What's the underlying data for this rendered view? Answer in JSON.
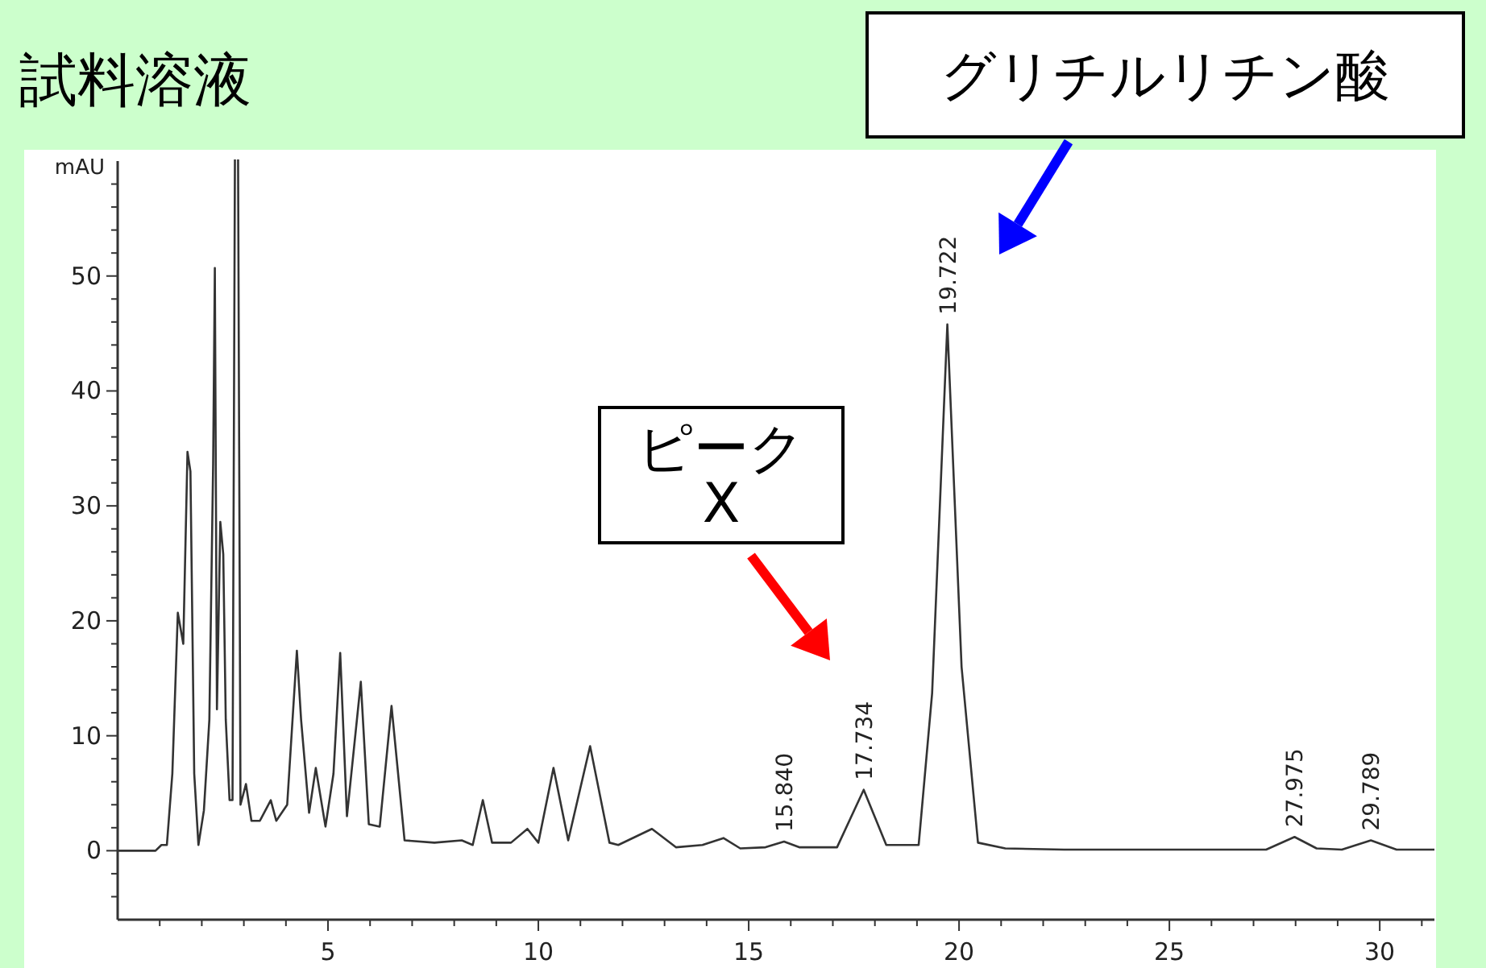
{
  "chart_data": {
    "type": "line",
    "title": "試料溶液",
    "ylabel": "mAU",
    "xlim": [
      0,
      31.3
    ],
    "ylim": [
      -6,
      60
    ],
    "xticks": [
      {
        "value": 1,
        "label": null
      },
      {
        "value": 2,
        "label": null
      },
      {
        "value": 3,
        "label": null
      },
      {
        "value": 4,
        "label": null
      },
      5,
      {
        "value": 6,
        "label": null
      },
      {
        "value": 7,
        "label": null
      },
      {
        "value": 8,
        "label": null
      },
      {
        "value": 9,
        "label": null
      },
      10,
      {
        "value": 11,
        "label": null
      },
      {
        "value": 12,
        "label": null
      },
      {
        "value": 13,
        "label": null
      },
      {
        "value": 14,
        "label": null
      },
      15,
      {
        "value": 16,
        "label": null
      },
      {
        "value": 17,
        "label": null
      },
      {
        "value": 18,
        "label": null
      },
      {
        "value": 19,
        "label": null
      },
      20,
      {
        "value": 21,
        "label": null
      },
      {
        "value": 22,
        "label": null
      },
      {
        "value": 23,
        "label": null
      },
      {
        "value": 24,
        "label": null
      },
      25,
      {
        "value": 26,
        "label": null
      },
      {
        "value": 27,
        "label": null
      },
      {
        "value": 28,
        "label": null
      },
      {
        "value": 29,
        "label": null
      },
      30,
      {
        "value": 31,
        "label": null
      }
    ],
    "yticks": [
      {
        "value": -4,
        "label": null
      },
      {
        "value": -2,
        "label": null
      },
      0,
      {
        "value": 2,
        "label": null
      },
      {
        "value": 4,
        "label": null
      },
      {
        "value": 6,
        "label": null
      },
      {
        "value": 8,
        "label": null
      },
      10,
      {
        "value": 12,
        "label": null
      },
      {
        "value": 14,
        "label": null
      },
      {
        "value": 16,
        "label": null
      },
      {
        "value": 18,
        "label": null
      },
      20,
      {
        "value": 22,
        "label": null
      },
      {
        "value": 24,
        "label": null
      },
      {
        "value": 26,
        "label": null
      },
      {
        "value": 28,
        "label": null
      },
      30,
      {
        "value": 32,
        "label": null
      },
      {
        "value": 34,
        "label": null
      },
      {
        "value": 36,
        "label": null
      },
      {
        "value": 38,
        "label": null
      },
      40,
      {
        "value": 42,
        "label": null
      },
      {
        "value": 44,
        "label": null
      },
      {
        "value": 46,
        "label": null
      },
      {
        "value": 48,
        "label": null
      },
      50,
      {
        "value": 52,
        "label": null
      },
      {
        "value": 54,
        "label": null
      },
      {
        "value": 56,
        "label": null
      },
      {
        "value": 58,
        "label": null
      }
    ],
    "grid": false,
    "marker": "none",
    "line_style": "solid",
    "series": [
      {
        "color": "#333333",
        "x": [
          0,
          0.9,
          1.04,
          1.17,
          1.3,
          1.43,
          1.56,
          1.66,
          1.73,
          1.82,
          1.92,
          2.05,
          2.18,
          2.27,
          2.31,
          2.36,
          2.44,
          2.51,
          2.57,
          2.66,
          2.73,
          2.79,
          2.86,
          2.92,
          3.05,
          3.18,
          3.38,
          3.64,
          3.77,
          4.03,
          4.26,
          4.36,
          4.55,
          4.71,
          4.94,
          5.13,
          5.29,
          5.45,
          5.78,
          5.97,
          6.23,
          6.51,
          6.82,
          7.53,
          8.18,
          8.44,
          8.68,
          8.9,
          9.35,
          9.74,
          10.0,
          10.36,
          10.71,
          11.23,
          11.69,
          11.9,
          12.7,
          13.27,
          13.9,
          14.4,
          14.8,
          15.4,
          15.84,
          16.2,
          17.1,
          17.734,
          18.27,
          19.04,
          19.36,
          19.722,
          20.06,
          20.45,
          21.1,
          22.5,
          27.3,
          27.975,
          28.5,
          29.1,
          29.789,
          30.4,
          31.3
        ],
        "values": [
          0,
          0,
          0.5,
          0.5,
          6.7,
          20.7,
          18,
          34.7,
          33,
          6.7,
          0.5,
          3.5,
          11.4,
          33.7,
          50.7,
          12.3,
          28.6,
          25.8,
          11.4,
          4.4,
          4.4,
          null,
          null,
          4,
          5.8,
          2.6,
          2.6,
          4.4,
          2.6,
          4,
          17.4,
          11.4,
          3.3,
          7.2,
          2.1,
          6.7,
          17.2,
          3,
          14.7,
          2.3,
          2.1,
          12.6,
          0.9,
          0.7,
          0.9,
          0.5,
          4.4,
          0.7,
          0.7,
          1.9,
          0.7,
          7.2,
          0.9,
          9.1,
          0.7,
          0.5,
          1.9,
          0.3,
          0.5,
          1.1,
          0.2,
          0.3,
          0.8,
          0.3,
          0.3,
          5.3,
          0.5,
          0.5,
          13.7,
          45.8,
          16,
          0.7,
          0.2,
          0.1,
          0.1,
          1.2,
          0.2,
          0.1,
          0.9,
          0.1,
          0.1
        ]
      }
    ],
    "annotations": [
      "ピーク X",
      "グリチルリチン酸",
      {
        "text": "15.840",
        "x": 15.84,
        "y": 0.8
      },
      {
        "text": "17.734",
        "x": 17.734,
        "y": 5.3
      },
      {
        "text": "19.722",
        "x": 19.722,
        "y": 45.8
      },
      {
        "text": "27.975",
        "x": 27.975,
        "y": 1.2
      },
      {
        "text": "29.789",
        "x": 29.789,
        "y": 0.9
      }
    ]
  }
}
